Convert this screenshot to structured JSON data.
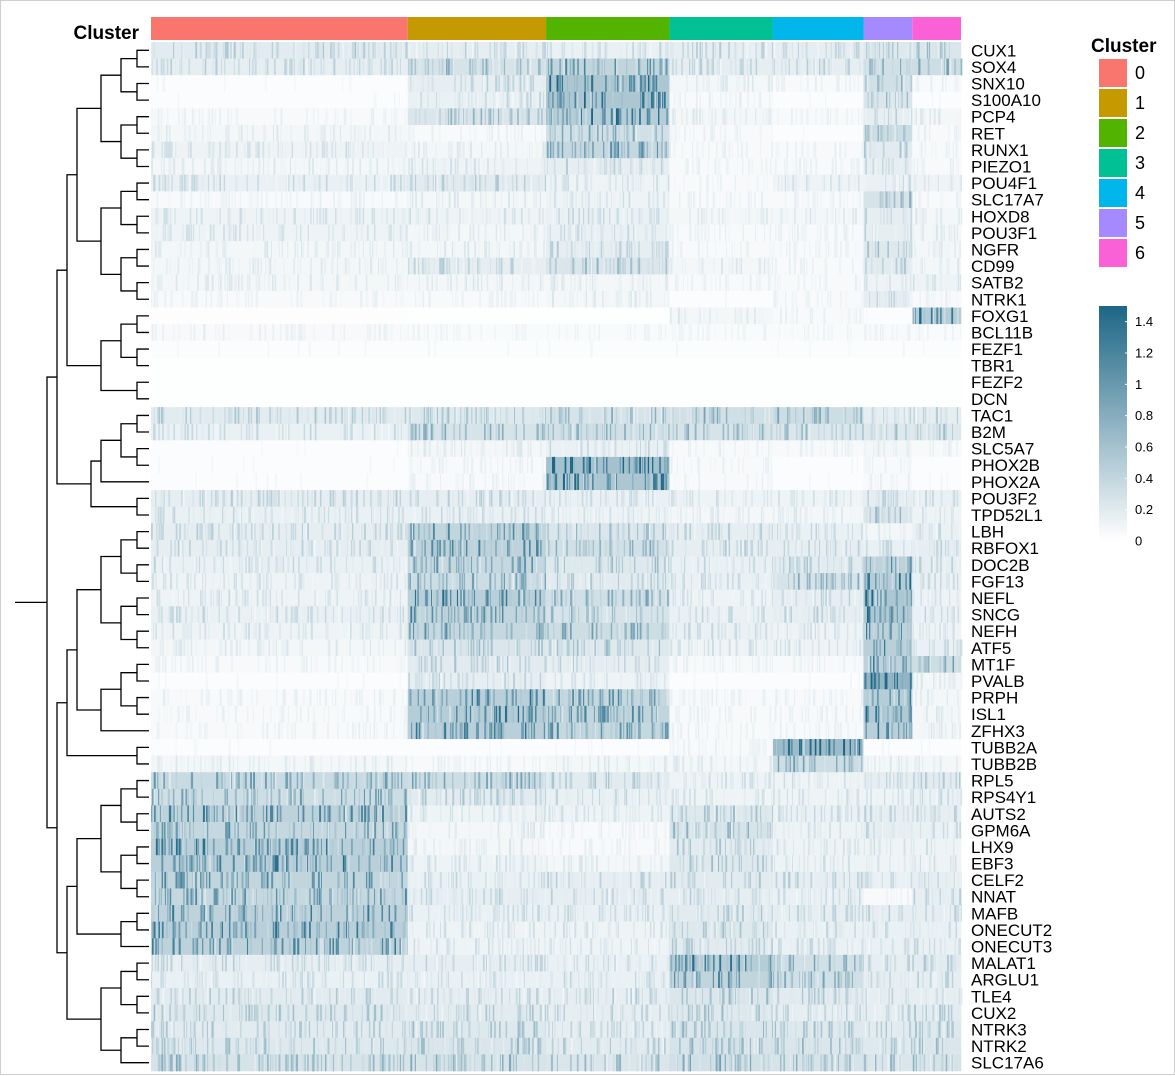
{
  "chart_data": {
    "type": "heatmap",
    "annotation_title": "Cluster",
    "clusters": [
      "0",
      "1",
      "2",
      "3",
      "4",
      "5",
      "6"
    ],
    "cluster_colors": [
      "#F8766D",
      "#C49A00",
      "#53B400",
      "#00C094",
      "#00B6EB",
      "#A58AFF",
      "#FB61D7"
    ],
    "cluster_cells": [
      258,
      139,
      124,
      104,
      91,
      49,
      49
    ],
    "genes": [
      "CUX1",
      "SOX4",
      "SNX10",
      "S100A10",
      "PCP4",
      "RET",
      "RUNX1",
      "PIEZO1",
      "POU4F1",
      "SLC17A7",
      "HOXD8",
      "POU3F1",
      "NGFR",
      "CD99",
      "SATB2",
      "NTRK1",
      "FOXG1",
      "BCL11B",
      "FEZF1",
      "TBR1",
      "FEZF2",
      "DCN",
      "TAC1",
      "B2M",
      "SLC5A7",
      "PHOX2B",
      "PHOX2A",
      "POU3F2",
      "TPD52L1",
      "LBH",
      "RBFOX1",
      "DOC2B",
      "FGF13",
      "NEFL",
      "SNCG",
      "NEFH",
      "ATF5",
      "MT1F",
      "PVALB",
      "PRPH",
      "ISL1",
      "ZFHX3",
      "TUBB2A",
      "TUBB2B",
      "RPL5",
      "RPS4Y1",
      "AUTS2",
      "GPM6A",
      "LHX9",
      "EBF3",
      "CELF2",
      "NNAT",
      "MAFB",
      "ONECUT2",
      "ONECUT3",
      "MALAT1",
      "ARGLU1",
      "TLE4",
      "CUX2",
      "NTRK3",
      "NTRK2",
      "SLC17A6"
    ],
    "mean_expression": [
      [
        0.35,
        0.3,
        0.25,
        0.3,
        0.3,
        0.4,
        0.45
      ],
      [
        0.3,
        0.5,
        0.75,
        0.3,
        0.3,
        0.55,
        0.6
      ],
      [
        0.05,
        0.3,
        1.0,
        0.15,
        0.1,
        0.55,
        0.1
      ],
      [
        0.05,
        0.25,
        1.0,
        0.1,
        0.05,
        0.45,
        0.05
      ],
      [
        0.1,
        0.45,
        0.9,
        0.15,
        0.1,
        0.3,
        0.15
      ],
      [
        0.15,
        0.1,
        0.55,
        0.1,
        0.05,
        0.6,
        0.1
      ],
      [
        0.2,
        0.15,
        0.7,
        0.1,
        0.1,
        0.35,
        0.1
      ],
      [
        0.15,
        0.2,
        0.3,
        0.1,
        0.1,
        0.3,
        0.1
      ],
      [
        0.25,
        0.35,
        0.2,
        0.1,
        0.2,
        0.25,
        0.2
      ],
      [
        0.1,
        0.15,
        0.2,
        0.1,
        0.1,
        0.5,
        0.1
      ],
      [
        0.2,
        0.2,
        0.25,
        0.15,
        0.15,
        0.3,
        0.15
      ],
      [
        0.2,
        0.15,
        0.25,
        0.1,
        0.1,
        0.3,
        0.15
      ],
      [
        0.15,
        0.15,
        0.3,
        0.1,
        0.1,
        0.4,
        0.15
      ],
      [
        0.15,
        0.3,
        0.45,
        0.15,
        0.1,
        0.35,
        0.15
      ],
      [
        0.15,
        0.15,
        0.15,
        0.1,
        0.1,
        0.2,
        0.2
      ],
      [
        0.1,
        0.1,
        0.15,
        0.05,
        0.1,
        0.3,
        0.1
      ],
      [
        0.03,
        0.02,
        0.02,
        0.15,
        0.1,
        0.05,
        0.9
      ],
      [
        0.1,
        0.08,
        0.08,
        0.08,
        0.08,
        0.1,
        0.08
      ],
      [
        0.05,
        0.05,
        0.05,
        0.05,
        0.05,
        0.05,
        0.05
      ],
      [
        0.02,
        0.02,
        0.02,
        0.02,
        0.02,
        0.02,
        0.02
      ],
      [
        0.02,
        0.02,
        0.02,
        0.02,
        0.02,
        0.02,
        0.02
      ],
      [
        0.02,
        0.02,
        0.02,
        0.02,
        0.02,
        0.02,
        0.02
      ],
      [
        0.35,
        0.4,
        0.5,
        0.55,
        0.6,
        0.3,
        0.3
      ],
      [
        0.25,
        0.5,
        0.55,
        0.5,
        0.45,
        0.4,
        0.4
      ],
      [
        0.05,
        0.15,
        0.25,
        0.1,
        0.1,
        0.15,
        0.1
      ],
      [
        0.05,
        0.1,
        1.1,
        0.1,
        0.05,
        0.1,
        0.05
      ],
      [
        0.05,
        0.1,
        1.0,
        0.1,
        0.05,
        0.1,
        0.05
      ],
      [
        0.3,
        0.3,
        0.25,
        0.2,
        0.2,
        0.3,
        0.25
      ],
      [
        0.25,
        0.25,
        0.2,
        0.15,
        0.15,
        0.45,
        0.2
      ],
      [
        0.3,
        0.75,
        0.45,
        0.3,
        0.25,
        0.15,
        0.25
      ],
      [
        0.3,
        0.8,
        0.55,
        0.3,
        0.3,
        0.25,
        0.3
      ],
      [
        0.25,
        0.7,
        0.4,
        0.25,
        0.35,
        0.8,
        0.3
      ],
      [
        0.2,
        0.6,
        0.35,
        0.25,
        0.5,
        0.9,
        0.25
      ],
      [
        0.2,
        0.85,
        0.55,
        0.2,
        0.3,
        1.0,
        0.2
      ],
      [
        0.25,
        0.75,
        0.5,
        0.25,
        0.3,
        0.95,
        0.25
      ],
      [
        0.2,
        0.7,
        0.6,
        0.25,
        0.2,
        0.8,
        0.2
      ],
      [
        0.15,
        0.45,
        0.4,
        0.2,
        0.2,
        0.85,
        0.25
      ],
      [
        0.1,
        0.35,
        0.3,
        0.1,
        0.1,
        0.8,
        0.6
      ],
      [
        0.05,
        0.3,
        0.2,
        0.05,
        0.05,
        1.3,
        0.15
      ],
      [
        0.1,
        0.85,
        0.7,
        0.1,
        0.1,
        0.9,
        0.15
      ],
      [
        0.1,
        0.9,
        0.75,
        0.1,
        0.1,
        0.95,
        0.15
      ],
      [
        0.1,
        0.85,
        0.7,
        0.1,
        0.1,
        0.85,
        0.15
      ],
      [
        0.05,
        0.05,
        0.05,
        0.1,
        1.2,
        0.05,
        0.05
      ],
      [
        0.15,
        0.1,
        0.15,
        0.15,
        0.6,
        0.15,
        0.15
      ],
      [
        0.65,
        0.6,
        0.35,
        0.2,
        0.2,
        0.3,
        0.35
      ],
      [
        0.6,
        0.35,
        0.25,
        0.2,
        0.2,
        0.2,
        0.25
      ],
      [
        0.8,
        0.2,
        0.2,
        0.4,
        0.25,
        0.3,
        0.3
      ],
      [
        0.7,
        0.15,
        0.1,
        0.5,
        0.2,
        0.3,
        0.25
      ],
      [
        0.85,
        0.15,
        0.1,
        0.35,
        0.2,
        0.2,
        0.2
      ],
      [
        0.85,
        0.2,
        0.15,
        0.4,
        0.2,
        0.2,
        0.2
      ],
      [
        0.75,
        0.25,
        0.3,
        0.35,
        0.3,
        0.25,
        0.3
      ],
      [
        0.7,
        0.3,
        0.3,
        0.3,
        0.25,
        0.1,
        0.3
      ],
      [
        0.8,
        0.25,
        0.25,
        0.35,
        0.3,
        0.3,
        0.3
      ],
      [
        0.85,
        0.2,
        0.2,
        0.4,
        0.25,
        0.25,
        0.25
      ],
      [
        0.8,
        0.2,
        0.2,
        0.35,
        0.25,
        0.25,
        0.25
      ],
      [
        0.3,
        0.3,
        0.25,
        0.9,
        0.55,
        0.3,
        0.35
      ],
      [
        0.25,
        0.25,
        0.25,
        0.75,
        0.55,
        0.3,
        0.3
      ],
      [
        0.35,
        0.3,
        0.3,
        0.45,
        0.35,
        0.3,
        0.3
      ],
      [
        0.4,
        0.35,
        0.3,
        0.4,
        0.3,
        0.3,
        0.35
      ],
      [
        0.35,
        0.4,
        0.3,
        0.45,
        0.4,
        0.35,
        0.4
      ],
      [
        0.4,
        0.45,
        0.35,
        0.5,
        0.45,
        0.4,
        0.45
      ],
      [
        0.5,
        0.5,
        0.45,
        0.55,
        0.5,
        0.45,
        0.5
      ]
    ],
    "colorbar": {
      "min": 0,
      "max": 1.5,
      "ticks": [
        "1.4",
        "1.2",
        "1",
        "0.8",
        "0.6",
        "0.4",
        "0.2",
        "0"
      ],
      "low_color": "#FFFFFF",
      "high_color": "#1D6685"
    },
    "dendrogram": "rows",
    "legend_position": "right"
  }
}
